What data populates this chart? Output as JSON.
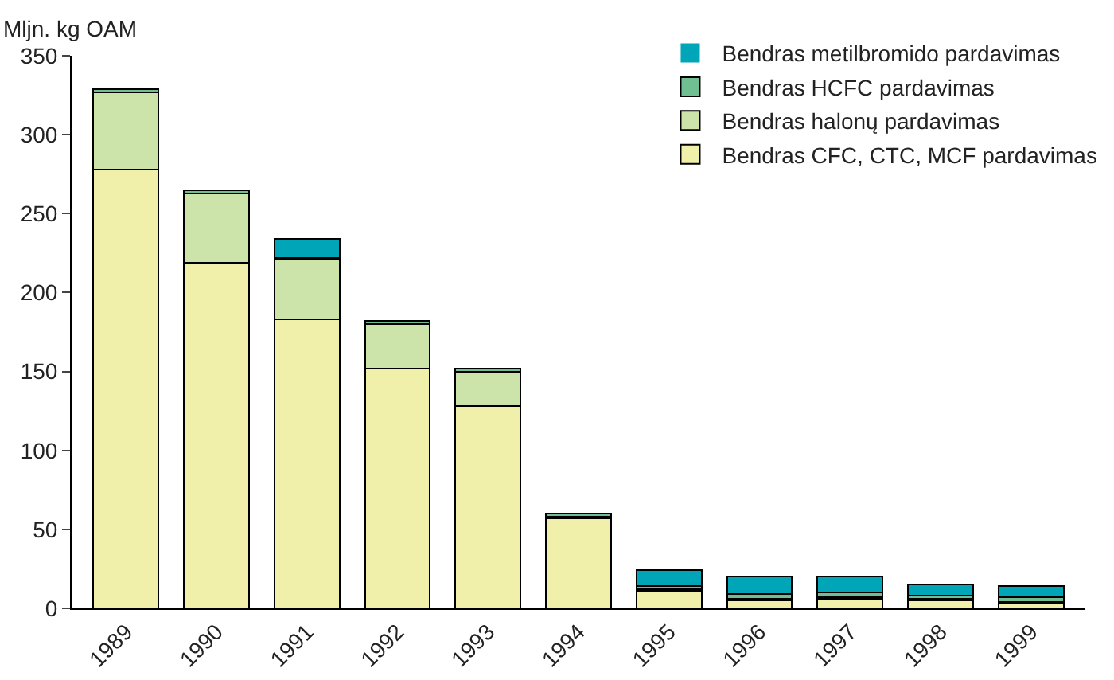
{
  "chart_data": {
    "type": "bar",
    "stacked": true,
    "ylabel": "Mljn. kg OAM",
    "categories": [
      "1989",
      "1990",
      "1991",
      "1992",
      "1993",
      "1994",
      "1995",
      "1996",
      "1997",
      "1998",
      "1999"
    ],
    "series": [
      {
        "name": "Bendras CFC, CTC, MCF pardavimas",
        "color": "#f0f0aa",
        "values": [
          278,
          219,
          183,
          152,
          128,
          57,
          11,
          5,
          6,
          5,
          3
        ]
      },
      {
        "name": "Bendras halonų pardavimas",
        "color": "#cce3aa",
        "values": [
          49,
          44,
          38,
          28,
          22,
          1,
          1,
          1,
          1,
          1,
          1
        ]
      },
      {
        "name": "Bendras HCFC pardavimas",
        "color": "#6fbf93",
        "values": [
          2,
          2,
          1,
          2,
          2,
          2,
          2,
          3,
          3,
          2,
          3
        ]
      },
      {
        "name": "Bendras metilbromido pardavimas",
        "color": "#00a6b8",
        "values": [
          0,
          0,
          12,
          0,
          0,
          0,
          10,
          11,
          10,
          7,
          7
        ]
      }
    ],
    "ylim": [
      0,
      350
    ],
    "yticks": [
      0,
      50,
      100,
      150,
      200,
      250,
      300,
      350
    ],
    "grid": false,
    "legend": "top right"
  }
}
